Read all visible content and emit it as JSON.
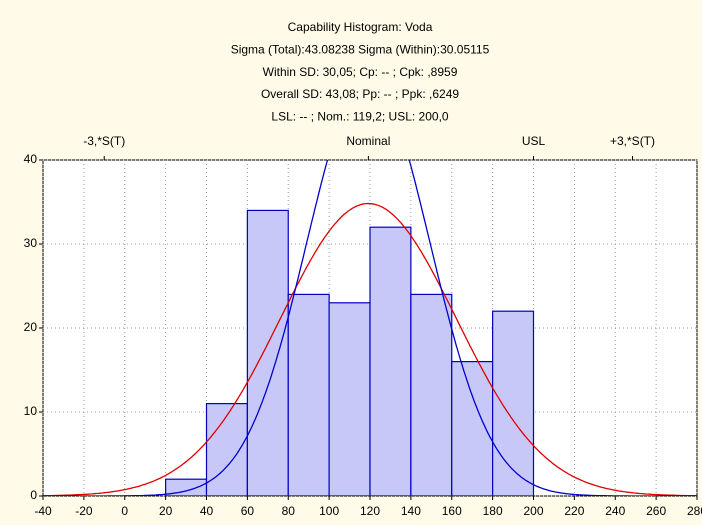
{
  "chart_data": {
    "type": "histogram",
    "title_lines": [
      "Capability Histogram: Voda",
      "Sigma (Total):43.08238 Sigma (Within):30.05115",
      "Within SD: 30,05; Cp:  -- ; Cpk: ,8959",
      "Overall SD: 43,08; Pp:  -- ; Ppk: ,6249",
      "LSL:  -- ; Nom.: 119,2; USL: 200,0"
    ],
    "bins": [
      20,
      40,
      60,
      80,
      100,
      120,
      140,
      160,
      180,
      200
    ],
    "values": [
      2,
      11,
      34,
      24,
      23,
      32,
      24,
      16,
      22
    ],
    "color": "#c8c8f8",
    "edge_color": "#0000c0",
    "normal_curves": [
      {
        "mean": 119.2,
        "sd": 43.08238,
        "color": "#e00000"
      },
      {
        "mean": 119.2,
        "sd": 30.05115,
        "color": "#0000d0"
      }
    ],
    "spec_lines": [
      {
        "label": "-3,*S(T)",
        "value": -10.05
      },
      {
        "label": "Nominal",
        "value": 119.2
      },
      {
        "label": "USL",
        "value": 200
      },
      {
        "label": "+3,*S(T)",
        "value": 248.45
      }
    ],
    "xlim": [
      -40,
      280
    ],
    "xticks": [
      -40,
      -20,
      0,
      20,
      40,
      60,
      80,
      100,
      120,
      140,
      160,
      180,
      200,
      220,
      240,
      260,
      280
    ],
    "ylim": [
      0,
      40
    ],
    "yticks": [
      0,
      10,
      20,
      30,
      40
    ],
    "grid": true
  }
}
